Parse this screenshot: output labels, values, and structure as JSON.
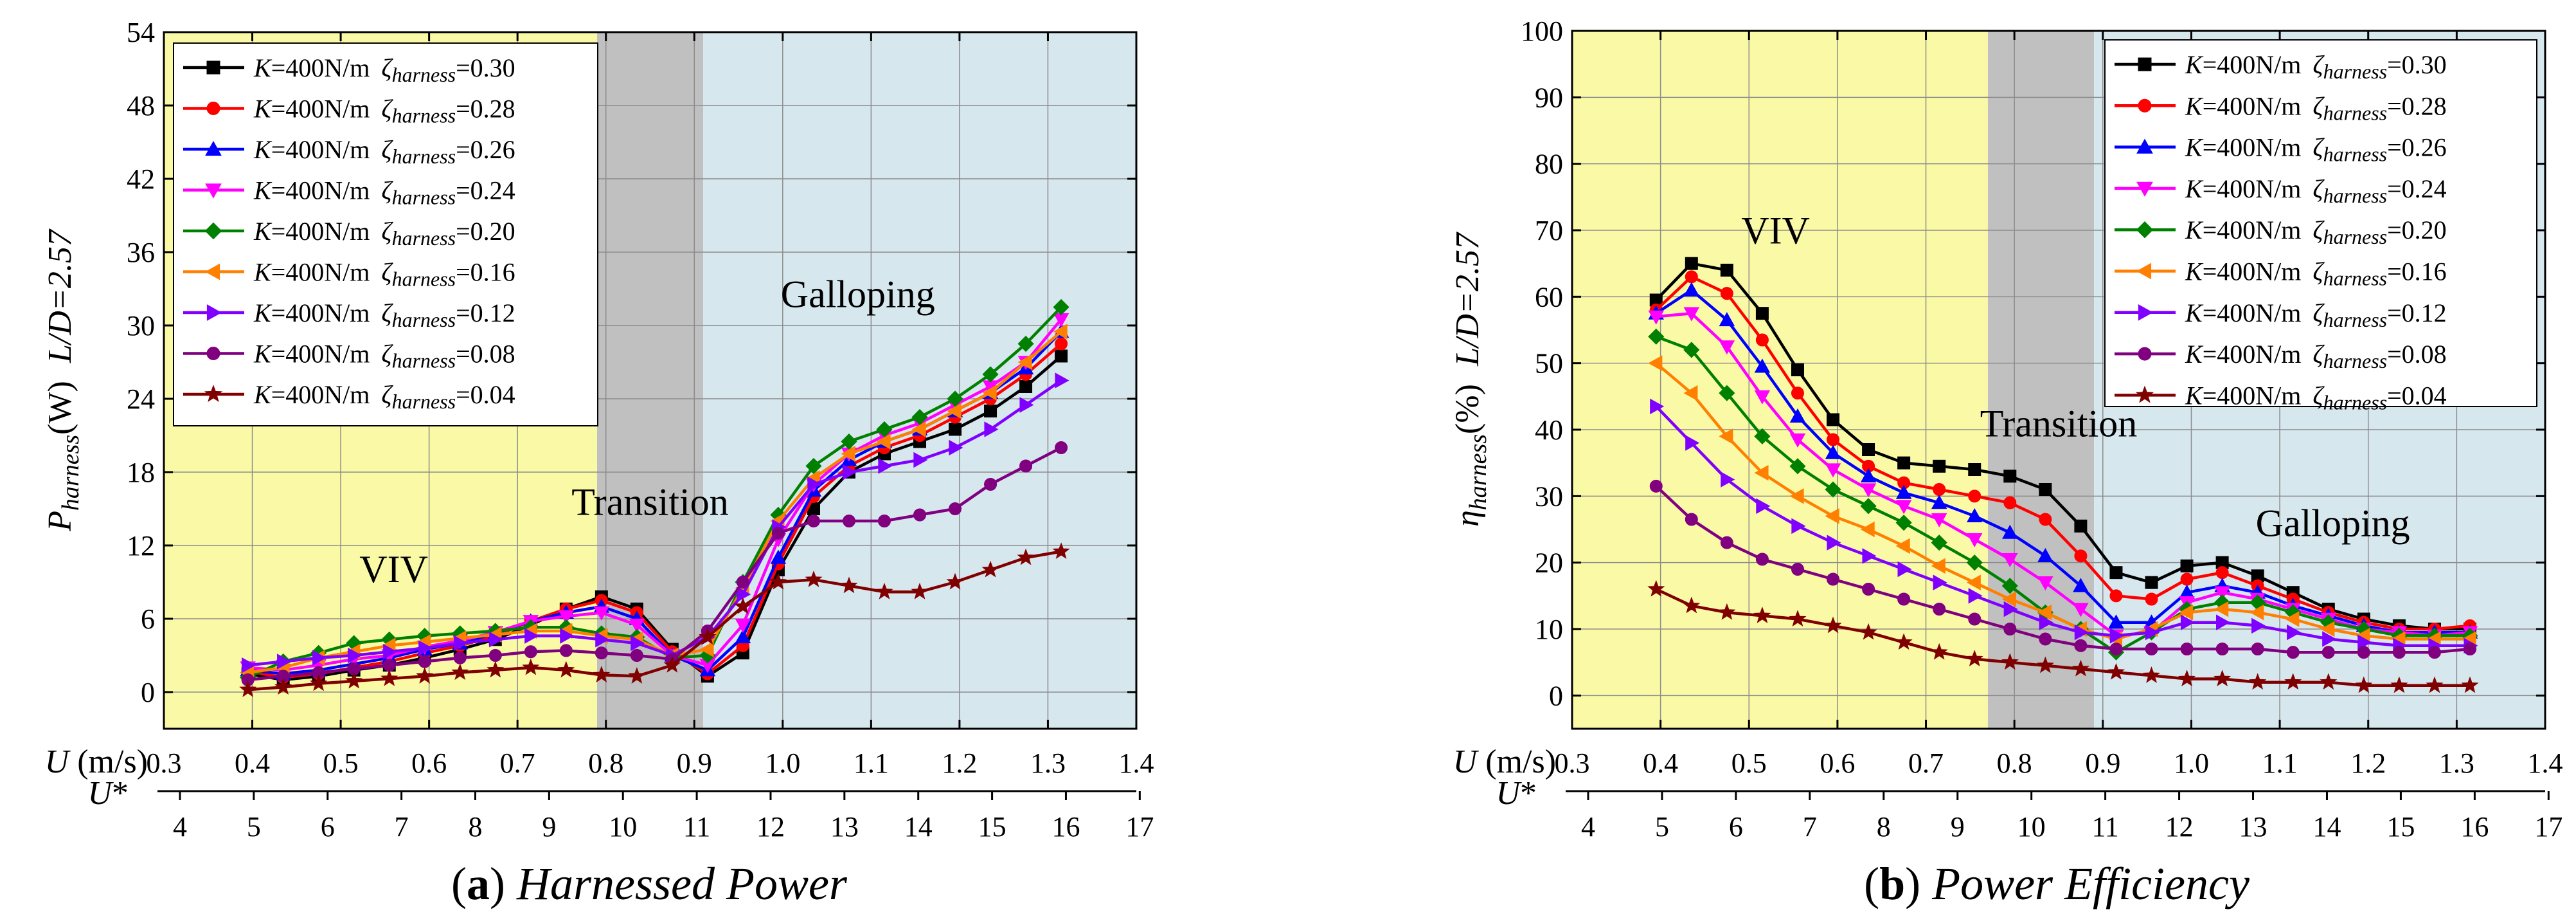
{
  "figure": {
    "panels": [
      "a",
      "b"
    ]
  },
  "chart_data": [
    {
      "id": "a",
      "type": "line",
      "title": "Harnessed Power",
      "caption_letter": "(a)",
      "ylabel": "P_harness(W)  L/D=2.57",
      "ylabel_parts": {
        "sym": "P",
        "sub": "harness",
        "unit": "(W)",
        "ratio": "L/D=2.57"
      },
      "xlabel": "U (m/s)",
      "x2label": "U*",
      "xlim": [
        0.3,
        1.4
      ],
      "ylim": [
        -3,
        54
      ],
      "xticks": [
        "0.3",
        "0.4",
        "0.5",
        "0.6",
        "0.7",
        "0.8",
        "0.9",
        "1.0",
        "1.1",
        "1.2",
        "1.3",
        "1.4"
      ],
      "yticks": [
        "0",
        "6",
        "12",
        "18",
        "24",
        "30",
        "36",
        "42",
        "48",
        "54"
      ],
      "x2ticks": [
        "4",
        "5",
        "6",
        "7",
        "8",
        "9",
        "10",
        "11",
        "12",
        "13",
        "14",
        "15",
        "16",
        "17"
      ],
      "grid": true,
      "regions": [
        {
          "name": "VIV",
          "from": 0.3,
          "to": 0.79,
          "color": "#fafaa6"
        },
        {
          "name": "Transition",
          "from": 0.79,
          "to": 0.91,
          "color": "#c0c0c0"
        },
        {
          "name": "Galloping",
          "from": 0.91,
          "to": 1.4,
          "color": "#d7e7ee"
        }
      ],
      "region_labels": [
        {
          "text": "VIV",
          "x": 0.56,
          "y": 9
        },
        {
          "text": "Transition",
          "x": 0.85,
          "y": 14.5
        },
        {
          "text": "Galloping",
          "x": 1.085,
          "y": 31.5
        }
      ],
      "legend_placement": "top-left",
      "x": [
        0.395,
        0.435,
        0.475,
        0.515,
        0.555,
        0.595,
        0.635,
        0.675,
        0.715,
        0.755,
        0.795,
        0.835,
        0.875,
        0.915,
        0.955,
        0.995,
        1.035,
        1.075,
        1.115,
        1.155,
        1.195,
        1.235,
        1.275,
        1.315
      ],
      "series": [
        {
          "name": "K=400N/m  ζharness=0.30",
          "k": "K",
          "kval": "=400N/m",
          "zeta": "ζ",
          "zsub": "harness",
          "zval": "=0.30",
          "color": "#000000",
          "marker": "square",
          "values": [
            1.5,
            1.0,
            1.3,
            1.8,
            2.2,
            2.8,
            3.5,
            4.3,
            5.5,
            6.8,
            7.8,
            6.8,
            3.5,
            1.3,
            3.2,
            10.0,
            15.0,
            18.0,
            19.5,
            20.5,
            21.5,
            23.0,
            25.0,
            27.5
          ]
        },
        {
          "name": "K=400N/m  ζharness=0.28",
          "k": "K",
          "kval": "=400N/m",
          "zeta": "ζ",
          "zsub": "harness",
          "zval": "=0.28",
          "color": "#ff0000",
          "marker": "circle",
          "values": [
            1.7,
            1.2,
            1.5,
            2.0,
            2.5,
            3.2,
            3.8,
            4.6,
            5.8,
            6.8,
            7.5,
            6.5,
            3.3,
            1.5,
            3.8,
            10.5,
            16.0,
            18.5,
            20.0,
            21.0,
            22.5,
            24.0,
            26.0,
            28.5
          ]
        },
        {
          "name": "K=400N/m  ζharness=0.26",
          "k": "K",
          "kval": "=400N/m",
          "zeta": "ζ",
          "zsub": "harness",
          "zval": "=0.26",
          "color": "#0000ff",
          "marker": "triangle-up",
          "values": [
            1.8,
            1.5,
            1.8,
            2.3,
            2.8,
            3.5,
            4.0,
            4.8,
            5.8,
            6.5,
            7.0,
            6.0,
            3.0,
            1.8,
            4.5,
            11.0,
            16.5,
            19.0,
            20.5,
            21.5,
            23.0,
            24.5,
            26.5,
            29.5
          ]
        },
        {
          "name": "K=400N/m  ζharness=0.24",
          "k": "K",
          "kval": "=400N/m",
          "zeta": "ζ",
          "zsub": "harness",
          "zval": "=0.24",
          "color": "#ff00ff",
          "marker": "triangle-down",
          "values": [
            2.0,
            1.8,
            2.2,
            2.7,
            3.0,
            3.7,
            4.2,
            4.9,
            5.8,
            6.2,
            6.5,
            5.5,
            3.0,
            2.2,
            5.5,
            12.5,
            17.0,
            19.5,
            21.0,
            22.0,
            23.5,
            25.0,
            27.0,
            30.5
          ]
        },
        {
          "name": "K=400N/m  ζharness=0.20",
          "k": "K",
          "kval": "=400N/m",
          "zeta": "ζ",
          "zsub": "harness",
          "zval": "=0.20",
          "color": "#008000",
          "marker": "diamond",
          "values": [
            1.2,
            2.5,
            3.2,
            4.0,
            4.3,
            4.6,
            4.8,
            5.0,
            5.3,
            5.3,
            4.8,
            4.5,
            2.8,
            3.0,
            9.0,
            14.5,
            18.5,
            20.5,
            21.5,
            22.5,
            24.0,
            26.0,
            28.5,
            31.5
          ]
        },
        {
          "name": "K=400N/m  ζharness=0.16",
          "k": "K",
          "kval": "=400N/m",
          "zeta": "ζ",
          "zsub": "harness",
          "zval": "=0.16",
          "color": "#ff8000",
          "marker": "triangle-left",
          "values": [
            1.6,
            2.0,
            2.8,
            3.3,
            3.8,
            4.1,
            4.4,
            4.7,
            5.0,
            5.0,
            4.6,
            4.3,
            3.0,
            3.5,
            8.5,
            14.0,
            17.5,
            19.5,
            20.5,
            21.5,
            23.0,
            24.5,
            27.0,
            29.5
          ]
        },
        {
          "name": "K=400N/m  ζharness=0.12",
          "k": "K",
          "kval": "=400N/m",
          "zeta": "ζ",
          "zsub": "harness",
          "zval": "=0.12",
          "color": "#8000ff",
          "marker": "triangle-right",
          "values": [
            2.2,
            2.5,
            2.8,
            3.0,
            3.3,
            3.6,
            4.0,
            4.3,
            4.6,
            4.6,
            4.3,
            4.0,
            3.0,
            4.5,
            8.0,
            13.5,
            17.0,
            18.0,
            18.5,
            19.0,
            20.0,
            21.5,
            23.5,
            25.5
          ]
        },
        {
          "name": "K=400N/m  ζharness=0.08",
          "k": "K",
          "kval": "=400N/m",
          "zeta": "ζ",
          "zsub": "harness",
          "zval": "=0.08",
          "color": "#800080",
          "marker": "circle",
          "values": [
            1.0,
            1.3,
            1.6,
            1.9,
            2.2,
            2.5,
            2.8,
            3.0,
            3.3,
            3.4,
            3.2,
            3.0,
            2.7,
            5.0,
            9.0,
            13.0,
            14.0,
            14.0,
            14.0,
            14.5,
            15.0,
            17.0,
            18.5,
            20.0
          ]
        },
        {
          "name": "K=400N/m  ζharness=0.04",
          "k": "K",
          "kval": "=400N/m",
          "zeta": "ζ",
          "zsub": "harness",
          "zval": "=0.04",
          "color": "#800000",
          "marker": "star",
          "values": [
            0.2,
            0.4,
            0.7,
            0.9,
            1.1,
            1.3,
            1.6,
            1.8,
            2.0,
            1.8,
            1.4,
            1.3,
            2.2,
            4.5,
            7.0,
            9.0,
            9.2,
            8.7,
            8.2,
            8.2,
            9.0,
            10.0,
            11.0,
            11.5
          ]
        }
      ]
    },
    {
      "id": "b",
      "type": "line",
      "title": "Power Efficiency",
      "caption_letter": "(b)",
      "ylabel": "η_harness(%)  L/D=2.57",
      "ylabel_parts": {
        "sym": "η",
        "sub": "harness",
        "unit": "(%)",
        "ratio": "L/D=2.57"
      },
      "xlabel": "U (m/s)",
      "x2label": "U*",
      "xlim": [
        0.3,
        1.4
      ],
      "ylim": [
        -5,
        100
      ],
      "xticks": [
        "0.3",
        "0.4",
        "0.5",
        "0.6",
        "0.7",
        "0.8",
        "0.9",
        "1.0",
        "1.1",
        "1.2",
        "1.3",
        "1.4"
      ],
      "yticks": [
        "0",
        "10",
        "20",
        "30",
        "40",
        "50",
        "60",
        "70",
        "80",
        "90",
        "100"
      ],
      "x2ticks": [
        "4",
        "5",
        "6",
        "7",
        "8",
        "9",
        "10",
        "11",
        "12",
        "13",
        "14",
        "15",
        "16",
        "17"
      ],
      "grid": true,
      "regions": [
        {
          "name": "VIV",
          "from": 0.3,
          "to": 0.77,
          "color": "#fafaa6"
        },
        {
          "name": "Transition",
          "from": 0.77,
          "to": 0.89,
          "color": "#c0c0c0"
        },
        {
          "name": "Galloping",
          "from": 0.89,
          "to": 1.4,
          "color": "#d7e7ee"
        }
      ],
      "region_labels": [
        {
          "text": "VIV",
          "x": 0.53,
          "y": 68
        },
        {
          "text": "Transition",
          "x": 0.85,
          "y": 39
        },
        {
          "text": "Galloping",
          "x": 1.16,
          "y": 24
        }
      ],
      "legend_placement": "top-right",
      "x": [
        0.395,
        0.435,
        0.475,
        0.515,
        0.555,
        0.595,
        0.635,
        0.675,
        0.715,
        0.755,
        0.795,
        0.835,
        0.875,
        0.915,
        0.955,
        0.995,
        1.035,
        1.075,
        1.115,
        1.155,
        1.195,
        1.235,
        1.275,
        1.315
      ],
      "series": [
        {
          "name": "K=400N/m  ζharness=0.30",
          "k": "K",
          "kval": "=400N/m",
          "zeta": "ζ",
          "zsub": "harness",
          "zval": "=0.30",
          "color": "#000000",
          "marker": "square",
          "values": [
            59.5,
            65.0,
            64.0,
            57.5,
            49.0,
            41.5,
            37.0,
            35.0,
            34.5,
            34.0,
            33.0,
            31.0,
            25.5,
            18.5,
            17.0,
            19.5,
            20.0,
            18.0,
            15.5,
            13.0,
            11.5,
            10.5,
            10.0,
            10.0
          ]
        },
        {
          "name": "K=400N/m  ζharness=0.28",
          "k": "K",
          "kval": "=400N/m",
          "zeta": "ζ",
          "zsub": "harness",
          "zval": "=0.28",
          "color": "#ff0000",
          "marker": "circle",
          "values": [
            58.0,
            63.0,
            60.5,
            53.5,
            45.5,
            38.5,
            34.5,
            32.0,
            31.0,
            30.0,
            29.0,
            26.5,
            21.0,
            15.0,
            14.5,
            17.5,
            18.5,
            16.5,
            14.5,
            12.5,
            11.0,
            10.0,
            10.0,
            10.5
          ]
        },
        {
          "name": "K=400N/m  ζharness=0.26",
          "k": "K",
          "kval": "=400N/m",
          "zeta": "ζ",
          "zsub": "harness",
          "zval": "=0.26",
          "color": "#0000ff",
          "marker": "triangle-up",
          "values": [
            57.5,
            61.0,
            56.5,
            49.5,
            42.0,
            36.5,
            33.0,
            30.5,
            29.0,
            27.0,
            24.5,
            21.0,
            16.5,
            11.0,
            11.0,
            15.5,
            16.5,
            15.5,
            13.5,
            12.0,
            10.5,
            9.5,
            9.5,
            9.5
          ]
        },
        {
          "name": "K=400N/m  ζharness=0.24",
          "k": "K",
          "kval": "=400N/m",
          "zeta": "ζ",
          "zsub": "harness",
          "zval": "=0.24",
          "color": "#ff00ff",
          "marker": "triangle-down",
          "values": [
            57.0,
            57.5,
            52.5,
            45.0,
            38.5,
            34.0,
            31.0,
            28.5,
            26.5,
            23.5,
            20.5,
            17.0,
            13.0,
            9.0,
            9.5,
            14.0,
            15.5,
            14.5,
            13.0,
            11.5,
            10.0,
            9.5,
            9.0,
            9.5
          ]
        },
        {
          "name": "K=400N/m  ζharness=0.20",
          "k": "K",
          "kval": "=400N/m",
          "zeta": "ζ",
          "zsub": "harness",
          "zval": "=0.20",
          "color": "#008000",
          "marker": "diamond",
          "values": [
            54.0,
            52.0,
            45.5,
            39.0,
            34.5,
            31.0,
            28.5,
            26.0,
            23.0,
            20.0,
            16.5,
            12.5,
            10.0,
            6.5,
            9.5,
            13.0,
            14.0,
            14.0,
            12.5,
            11.0,
            10.0,
            9.0,
            9.0,
            9.0
          ]
        },
        {
          "name": "K=400N/m  ζharness=0.16",
          "k": "K",
          "kval": "=400N/m",
          "zeta": "ζ",
          "zsub": "harness",
          "zval": "=0.16",
          "color": "#ff8000",
          "marker": "triangle-left",
          "values": [
            50.0,
            45.5,
            39.0,
            33.5,
            30.0,
            27.0,
            25.0,
            22.5,
            19.5,
            17.0,
            14.5,
            12.5,
            10.0,
            8.5,
            10.0,
            12.5,
            13.0,
            12.5,
            11.5,
            10.0,
            9.0,
            8.5,
            8.5,
            8.5
          ]
        },
        {
          "name": "K=400N/m  ζharness=0.12",
          "k": "K",
          "kval": "=400N/m",
          "zeta": "ζ",
          "zsub": "harness",
          "zval": "=0.12",
          "color": "#8000ff",
          "marker": "triangle-right",
          "values": [
            43.5,
            38.0,
            32.5,
            28.5,
            25.5,
            23.0,
            21.0,
            19.0,
            17.0,
            15.0,
            13.0,
            11.0,
            9.5,
            9.0,
            9.5,
            11.0,
            11.0,
            10.5,
            9.5,
            8.5,
            8.0,
            7.5,
            7.5,
            7.5
          ]
        },
        {
          "name": "K=400N/m  ζharness=0.08",
          "k": "K",
          "kval": "=400N/m",
          "zeta": "ζ",
          "zsub": "harness",
          "zval": "=0.08",
          "color": "#800080",
          "marker": "circle",
          "values": [
            31.5,
            26.5,
            23.0,
            20.5,
            19.0,
            17.5,
            16.0,
            14.5,
            13.0,
            11.5,
            10.0,
            8.5,
            7.5,
            7.0,
            7.0,
            7.0,
            7.0,
            7.0,
            6.5,
            6.5,
            6.5,
            6.5,
            6.5,
            7.0
          ]
        },
        {
          "name": "K=400N/m  ζharness=0.04",
          "k": "K",
          "kval": "=400N/m",
          "zeta": "ζ",
          "zsub": "harness",
          "zval": "=0.04",
          "color": "#800000",
          "marker": "star",
          "values": [
            16.0,
            13.5,
            12.5,
            12.0,
            11.5,
            10.5,
            9.5,
            8.0,
            6.5,
            5.5,
            5.0,
            4.5,
            4.0,
            3.5,
            3.0,
            2.5,
            2.5,
            2.0,
            2.0,
            2.0,
            1.5,
            1.5,
            1.5,
            1.5
          ]
        }
      ]
    }
  ]
}
